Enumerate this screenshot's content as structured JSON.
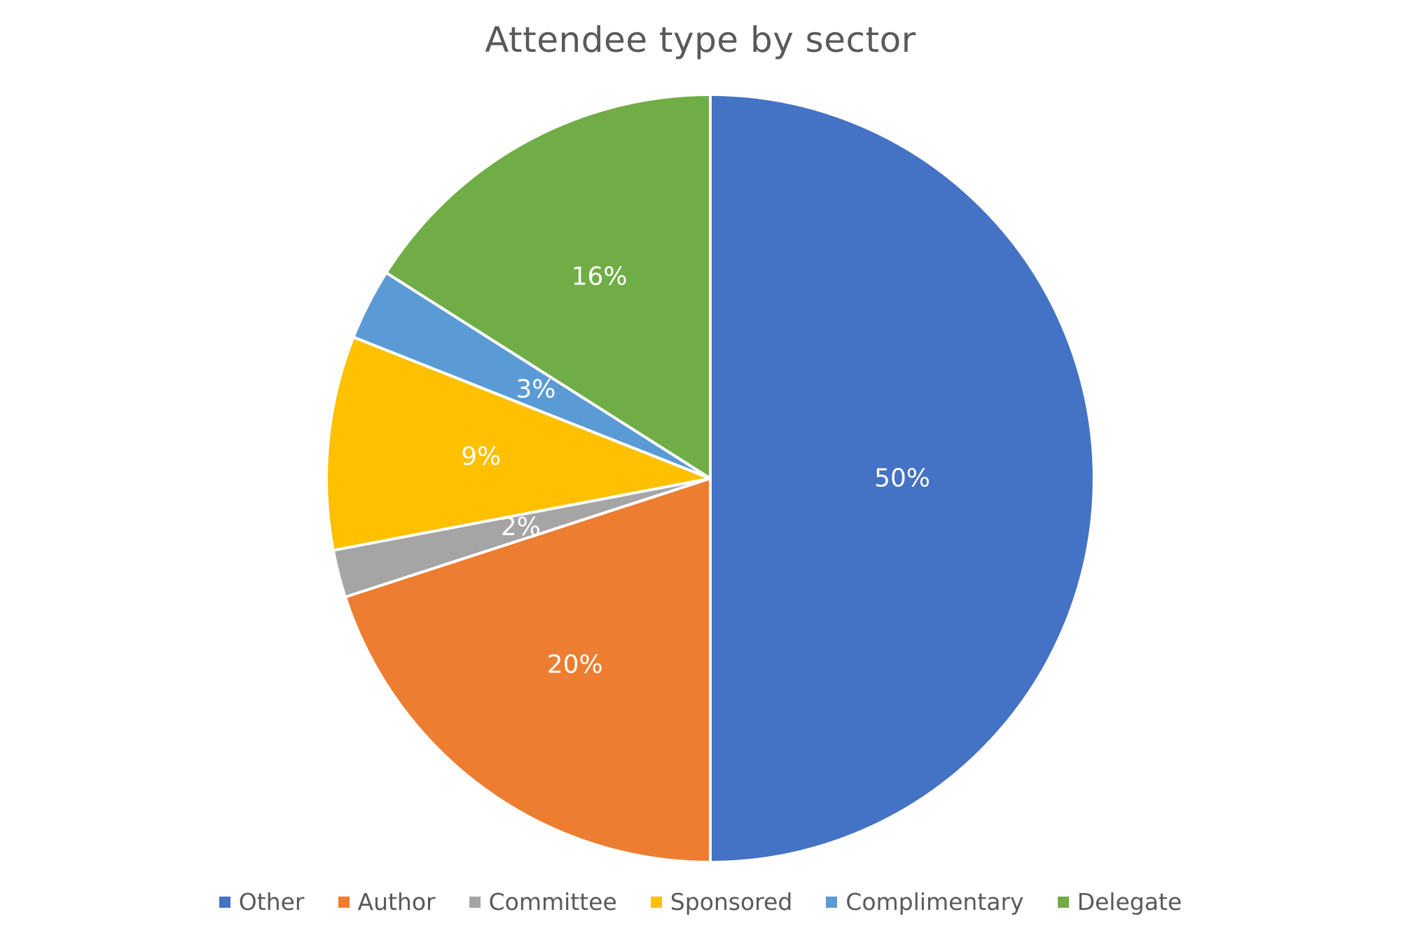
{
  "chart_data": {
    "type": "pie",
    "title": "Attendee type by sector",
    "categories": [
      "Other",
      "Author",
      "Committee",
      "Sponsored",
      "Complimentary",
      "Delegate"
    ],
    "values": [
      50,
      20,
      2,
      9,
      3,
      16
    ],
    "labels": [
      "50%",
      "20%",
      "2%",
      "9%",
      "3%",
      "16%"
    ],
    "colors": [
      "#4472C4",
      "#ED7D31",
      "#A5A5A5",
      "#FFC000",
      "#5B9BD5",
      "#70AD47"
    ],
    "start_angle": "12 o'clock",
    "direction": "clockwise",
    "legend_position": "bottom"
  }
}
